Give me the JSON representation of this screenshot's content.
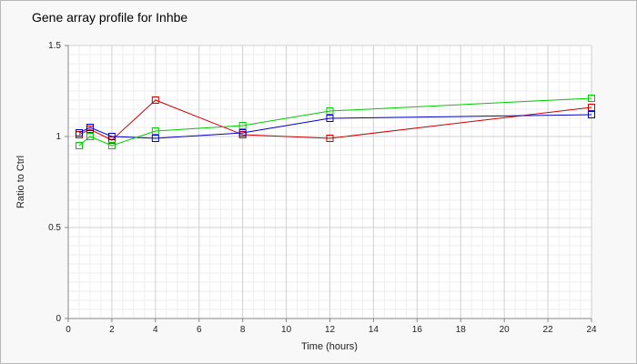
{
  "chart_data": {
    "type": "line",
    "title": "Gene array profile for Inhbe",
    "xlabel": "Time (hours)",
    "ylabel": "Ratio to Ctrl",
    "xlim": [
      0,
      24
    ],
    "ylim": [
      0,
      1.5
    ],
    "xticks": [
      0,
      2,
      4,
      6,
      8,
      10,
      12,
      14,
      16,
      18,
      20,
      22,
      24
    ],
    "yticks": [
      0,
      0.5,
      1,
      1.5
    ],
    "ytick_labels": [
      "0",
      "0.5",
      "1",
      "1.5"
    ],
    "grid": true,
    "x": [
      0.5,
      1,
      2,
      4,
      8,
      12,
      24
    ],
    "series": [
      {
        "color": "#cc0000",
        "marker": "square",
        "values": [
          1.01,
          1.04,
          0.98,
          1.2,
          1.01,
          0.99,
          1.16
        ]
      },
      {
        "color": "#0000cc",
        "marker": "square",
        "values": [
          1.02,
          1.05,
          1.0,
          0.99,
          1.02,
          1.1,
          1.12
        ]
      },
      {
        "color": "#00cc00",
        "marker": "square",
        "values": [
          0.95,
          1.0,
          0.95,
          1.03,
          1.06,
          1.14,
          1.21
        ]
      }
    ]
  }
}
